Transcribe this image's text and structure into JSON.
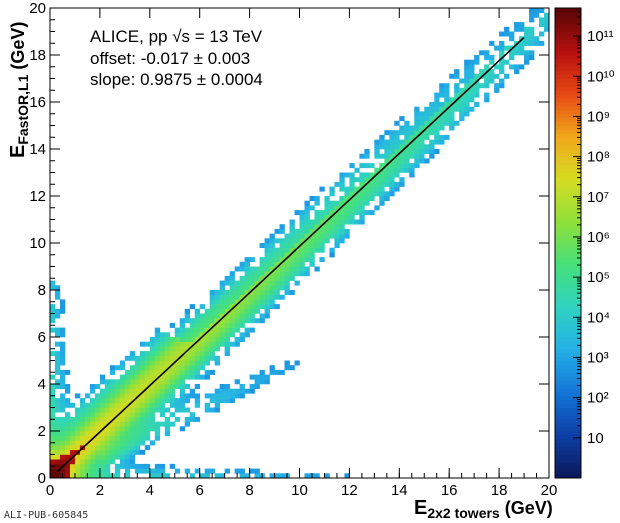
{
  "chart_data": {
    "type": "heatmap",
    "title": "",
    "xlabel": {
      "main": "E",
      "sub": "2x2 towers",
      "unit": " (GeV)"
    },
    "ylabel": {
      "main": "E",
      "sub": "FastOR,L1",
      "unit": " (GeV)"
    },
    "xlim": [
      0,
      20
    ],
    "ylim": [
      0,
      20
    ],
    "x_ticks": [
      0,
      2,
      4,
      6,
      8,
      10,
      12,
      14,
      16,
      18,
      20
    ],
    "y_ticks": [
      0,
      2,
      4,
      6,
      8,
      10,
      12,
      14,
      16,
      18,
      20
    ],
    "z_scale": "log",
    "z_range": [
      1,
      500000000000
    ],
    "z_ticks": [
      {
        "label": "10",
        "value": 10
      },
      {
        "label": "10²",
        "value": 100
      },
      {
        "label": "10³",
        "value": 1000
      },
      {
        "label": "10⁴",
        "value": 10000
      },
      {
        "label": "10⁵",
        "value": 100000
      },
      {
        "label": "10⁶",
        "value": 1000000
      },
      {
        "label": "10⁷",
        "value": 10000000
      },
      {
        "label": "10⁸",
        "value": 100000000
      },
      {
        "label": "10⁹",
        "value": 1000000000
      },
      {
        "label": "10¹⁰",
        "value": 10000000000
      },
      {
        "label": "10¹¹",
        "value": 100000000000
      }
    ],
    "colormap": [
      "#0b1a5c",
      "#0d3fa8",
      "#1476d8",
      "#25b0e6",
      "#2fd3c0",
      "#46e07a",
      "#8fe03a",
      "#d6dc22",
      "#f0a81a",
      "#e84a14",
      "#b81010",
      "#5a0606"
    ],
    "fit_line": {
      "offset": -0.017,
      "slope": 0.9875,
      "x_range": [
        0.3,
        19.0
      ]
    },
    "annotations": {
      "line1": "ALICE, pp  √s = 13 TeV",
      "line2": "offset: -0.017 ± 0.003",
      "line3": "slope: 0.9875 ± 0.0004"
    },
    "footer": "ALI-PUB-605845"
  }
}
